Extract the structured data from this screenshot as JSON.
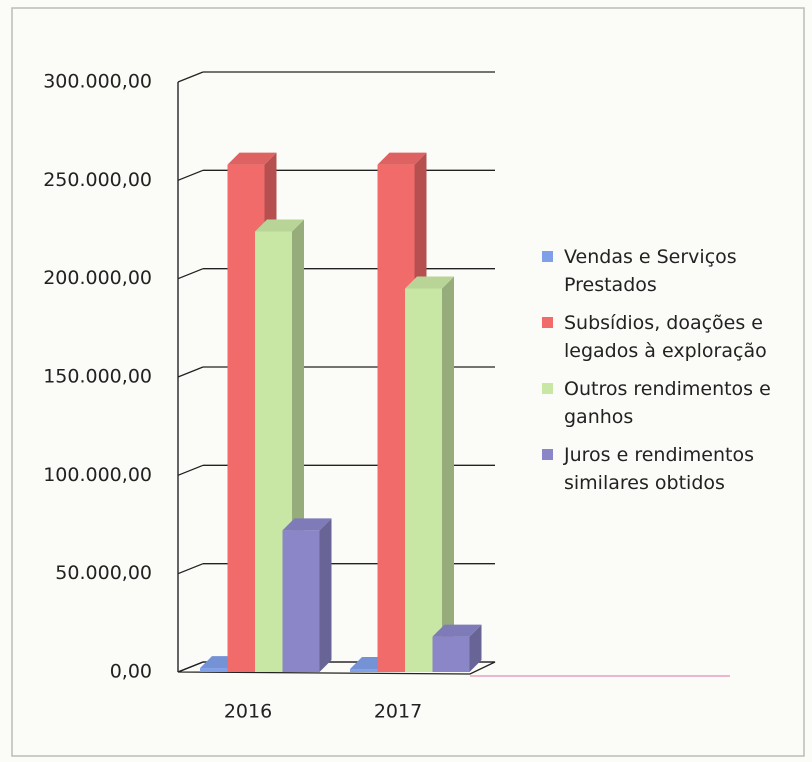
{
  "chart_data": {
    "type": "bar3d",
    "categories": [
      "2016",
      "2017"
    ],
    "series": [
      {
        "name": "Vendas e Serviços Prestados",
        "color": "#7f9fe8",
        "values": [
          2000,
          1500
        ]
      },
      {
        "name": "Subsídios, doações e legados à exploração",
        "color": "#f26b6b",
        "values": [
          258000,
          258000
        ]
      },
      {
        "name": "Outros rendimentos e ganhos",
        "color": "#c8e6a4",
        "values": [
          224000,
          195000
        ]
      },
      {
        "name": "Juros e rendimentos similares obtidos",
        "color": "#8a86c8",
        "values": [
          72000,
          18000
        ]
      }
    ],
    "ylim": [
      0,
      300000
    ],
    "yticks": [
      {
        "value": 0,
        "label": "0,00"
      },
      {
        "value": 50000,
        "label": "50.000,00"
      },
      {
        "value": 100000,
        "label": "100.000,00"
      },
      {
        "value": 150000,
        "label": "150.000,00"
      },
      {
        "value": 200000,
        "label": "200.000,00"
      },
      {
        "value": 250000,
        "label": "250.000,00"
      },
      {
        "value": 300000,
        "label": "300.000,00"
      }
    ],
    "grid": true,
    "legend": "right"
  }
}
